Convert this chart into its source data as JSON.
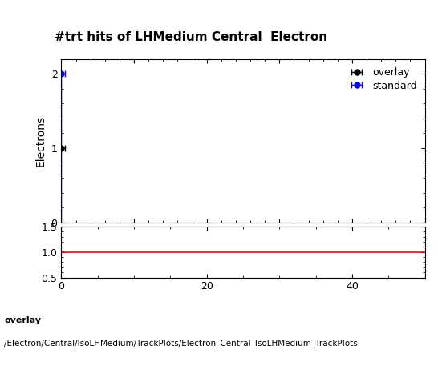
{
  "title": "#trt hits of LHMedium Central  Electron",
  "ylabel_main": "Electrons",
  "xlabel": "",
  "xlim": [
    0,
    50
  ],
  "ylim_main": [
    0,
    2.2
  ],
  "ylim_ratio": [
    0.5,
    1.5
  ],
  "overlay_x": [
    0
  ],
  "overlay_y": [
    1
  ],
  "overlay_xerr": [
    0.5
  ],
  "overlay_yerr": [
    0.0
  ],
  "standard_x": [
    0
  ],
  "standard_y": [
    2
  ],
  "standard_xerr": [
    0.5
  ],
  "standard_yerr": [
    0.0
  ],
  "overlay_color": "#000000",
  "standard_color": "#0000ff",
  "ratio_line_color": "#ff0000",
  "ratio_line_y": 1.0,
  "ratio_yticks": [
    0.5,
    1.0,
    1.5
  ],
  "main_yticks": [
    0,
    1,
    2
  ],
  "xticks": [
    0,
    20,
    40
  ],
  "legend_overlay": "overlay",
  "legend_standard": "standard",
  "footer_line1": "overlay",
  "footer_line2": "/Electron/Central/IsoLHMedium/TrackPlots/Electron_Central_IsoLHMedium_TrackPlots",
  "title_fontsize": 11,
  "axis_label_fontsize": 10,
  "tick_label_fontsize": 9,
  "legend_fontsize": 9,
  "footer_fontsize": 8
}
